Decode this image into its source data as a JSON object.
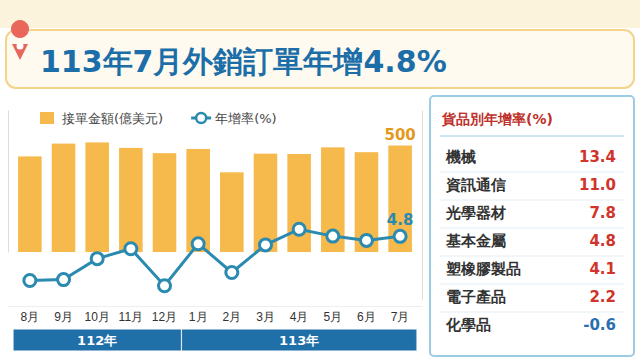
{
  "chart_data": [
    {
      "type": "bar",
      "title": "113年7月外銷訂單年增4.8%",
      "categories": [
        "8月",
        "9月",
        "10月",
        "11月",
        "12月",
        "1月",
        "2月",
        "3月",
        "4月",
        "5月",
        "6月",
        "7月"
      ],
      "periods": [
        {
          "label": "112年",
          "count": 5
        },
        {
          "label": "113年",
          "count": 7
        }
      ],
      "series": [
        {
          "name": "接單金額(億美元)",
          "type": "bar",
          "color": "#f6b94c",
          "values": [
            466.2,
            505.9,
            509.5,
            492.6,
            476.3,
            489.2,
            416.9,
            474.7,
            473.7,
            494.2,
            479.3,
            500
          ],
          "value_labels": [
            null,
            null,
            null,
            null,
            null,
            null,
            null,
            null,
            null,
            null,
            null,
            "500"
          ]
        },
        {
          "name": "年增率(%)",
          "type": "line",
          "axis": "y2",
          "color": "#2a8ab0",
          "marker": "circle",
          "values": [
            -13.8,
            -13.4,
            -4.6,
            -0.4,
            -16.0,
            1.7,
            -10.4,
            1.2,
            7.8,
            4.9,
            3.1,
            4.8
          ],
          "value_labels": [
            null,
            null,
            null,
            null,
            null,
            null,
            null,
            null,
            null,
            null,
            null,
            "4.8"
          ]
        }
      ],
      "ylim": [
        170,
        610
      ],
      "yticks": [],
      "y2lim": [
        -22,
        58
      ],
      "y2ticks": [],
      "tick_labels": "x",
      "legend": "top"
    },
    {
      "type": "table",
      "title": "貨品別年增率(%)",
      "categories": [
        "機械",
        "資訊通信",
        "光學器材",
        "基本金屬",
        "塑橡膠製品",
        "電子產品",
        "化學品"
      ],
      "values": [
        13.4,
        11.0,
        7.8,
        4.8,
        4.1,
        2.2,
        -0.6
      ],
      "value_labels": [
        "13.4",
        "11.0",
        "7.8",
        "4.8",
        "4.1",
        "2.2",
        "-0.6"
      ],
      "colors": [
        "#d0342c",
        "#d0342c",
        "#d0342c",
        "#d0342c",
        "#d0342c",
        "#d0342c",
        "#2a6fb0"
      ]
    }
  ]
}
